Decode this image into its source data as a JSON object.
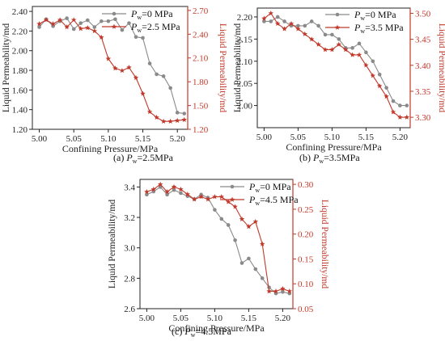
{
  "colors": {
    "gray_series": "#8a8a8a",
    "red_series": "#c0392b",
    "left_axis": "#222222",
    "right_axis": "#c0392b"
  },
  "chart_data": [
    {
      "type": "line",
      "caption": {
        "prefix": "(a) ",
        "var": "P",
        "sub": "w",
        "suffix": "=2.5MPa"
      },
      "xlabel": "Confining Pressure/MPa",
      "ylabel": "Liquid Permeability/md",
      "y2label": "Liquid Permeability/md",
      "xlim": [
        4.99,
        5.215
      ],
      "ylim": [
        1.2,
        2.45
      ],
      "y2lim": [
        1.2,
        2.75
      ],
      "x_ticks": [
        "5.00",
        "5.05",
        "5.10",
        "5.15",
        "5.20"
      ],
      "y_ticks": [
        "1.20",
        "1.40",
        "1.60",
        "1.80",
        "2.00",
        "2.20",
        "2.40"
      ],
      "y2_ticks": [
        "1.20",
        "1.50",
        "1.80",
        "2.10",
        "2.40",
        "2.70"
      ],
      "legend_position": "top-right",
      "series": [
        {
          "legend": {
            "var": "P",
            "sub": "w",
            "suffix": "=0 MPa"
          },
          "axis": "left",
          "marker": "circle",
          "x": [
            5.0,
            5.01,
            5.02,
            5.03,
            5.04,
            5.05,
            5.06,
            5.07,
            5.08,
            5.09,
            5.1,
            5.11,
            5.12,
            5.13,
            5.14,
            5.15,
            5.16,
            5.17,
            5.18,
            5.19,
            5.2,
            5.21
          ],
          "y": [
            2.24,
            2.32,
            2.25,
            2.3,
            2.33,
            2.22,
            2.28,
            2.31,
            2.24,
            2.3,
            2.3,
            2.32,
            2.21,
            2.28,
            2.14,
            2.13,
            1.87,
            1.76,
            1.74,
            1.62,
            1.37,
            1.36
          ]
        },
        {
          "legend": {
            "var": "P",
            "sub": "w",
            "suffix": "=2.5 MPa"
          },
          "axis": "right",
          "marker": "star",
          "x": [
            5.0,
            5.01,
            5.02,
            5.03,
            5.04,
            5.05,
            5.06,
            5.07,
            5.08,
            5.09,
            5.1,
            5.11,
            5.12,
            5.13,
            5.14,
            5.15,
            5.16,
            5.17,
            5.18,
            5.19,
            5.2,
            5.21
          ],
          "y": [
            2.53,
            2.58,
            2.53,
            2.58,
            2.49,
            2.58,
            2.47,
            2.48,
            2.44,
            2.36,
            2.09,
            1.97,
            1.94,
            1.98,
            1.85,
            1.65,
            1.42,
            1.35,
            1.3,
            1.3,
            1.31,
            1.32
          ]
        }
      ]
    },
    {
      "type": "line",
      "caption": {
        "prefix": "(b) ",
        "var": "P",
        "sub": "w",
        "suffix": "=3.5MPa"
      },
      "xlabel": "Confining Pressure/MPa",
      "ylabel": "Liquid Permeability/md",
      "y2label": "Liquid Permeability/md",
      "xlim": [
        4.99,
        5.215
      ],
      "ylim": [
        1.95,
        2.22
      ],
      "y2lim": [
        3.28,
        3.51
      ],
      "x_ticks": [
        "5.00",
        "5.05",
        "5.10",
        "5.15",
        "5.20"
      ],
      "y_ticks": [
        "2.00",
        "2.05",
        "2.10",
        "2.15",
        "2.20"
      ],
      "y2_ticks": [
        "3.30",
        "3.35",
        "3.40",
        "3.45",
        "3.50"
      ],
      "legend_position": "top-right",
      "series": [
        {
          "legend": {
            "var": "P",
            "sub": "w",
            "suffix": "=0 MPa"
          },
          "axis": "left",
          "marker": "circle",
          "x": [
            5.0,
            5.01,
            5.02,
            5.03,
            5.04,
            5.05,
            5.06,
            5.07,
            5.08,
            5.09,
            5.1,
            5.11,
            5.12,
            5.13,
            5.14,
            5.15,
            5.16,
            5.17,
            5.18,
            5.19,
            5.2,
            5.21
          ],
          "y": [
            2.19,
            2.19,
            2.2,
            2.19,
            2.18,
            2.18,
            2.18,
            2.19,
            2.18,
            2.16,
            2.16,
            2.15,
            2.13,
            2.13,
            2.14,
            2.12,
            2.1,
            2.07,
            2.04,
            2.01,
            2.0,
            2.0
          ]
        },
        {
          "legend": {
            "var": "P",
            "sub": "w",
            "suffix": "=3.5 MPa"
          },
          "axis": "right",
          "marker": "star",
          "x": [
            5.0,
            5.01,
            5.02,
            5.03,
            5.04,
            5.05,
            5.06,
            5.07,
            5.08,
            5.09,
            5.1,
            5.11,
            5.12,
            5.13,
            5.14,
            5.15,
            5.16,
            5.17,
            5.18,
            5.19,
            5.2,
            5.21
          ],
          "y": [
            3.49,
            3.5,
            3.48,
            3.47,
            3.48,
            3.47,
            3.46,
            3.45,
            3.44,
            3.43,
            3.43,
            3.44,
            3.43,
            3.42,
            3.42,
            3.4,
            3.38,
            3.36,
            3.34,
            3.31,
            3.3,
            3.3
          ]
        }
      ]
    },
    {
      "type": "line",
      "caption": {
        "prefix": "(c) ",
        "var": "P",
        "sub": "w",
        "suffix": "=4.5MPa"
      },
      "xlabel": "Confining Pressure/MPa",
      "ylabel": "Liquid Permeability/md",
      "y2label": "Liquid Permeability/md",
      "xlim": [
        4.99,
        5.215
      ],
      "ylim": [
        2.6,
        3.45
      ],
      "y2lim": [
        0.05,
        0.31
      ],
      "x_ticks": [
        "5.00",
        "5.05",
        "5.10",
        "5.15",
        "5.20"
      ],
      "y_ticks": [
        "2.6",
        "2.8",
        "3.0",
        "3.2",
        "3.4"
      ],
      "y2_ticks": [
        "0.05",
        "0.10",
        "0.15",
        "0.20",
        "0.25",
        "0.30"
      ],
      "legend_position": "top-right",
      "series": [
        {
          "legend": {
            "var": "P",
            "sub": "w",
            "suffix": "=0 MPa"
          },
          "axis": "left",
          "marker": "circle",
          "x": [
            5.0,
            5.01,
            5.02,
            5.03,
            5.04,
            5.05,
            5.06,
            5.07,
            5.08,
            5.09,
            5.1,
            5.11,
            5.12,
            5.13,
            5.14,
            5.15,
            5.16,
            5.17,
            5.18,
            5.19,
            5.2,
            5.21
          ],
          "y": [
            3.35,
            3.37,
            3.4,
            3.35,
            3.38,
            3.36,
            3.34,
            3.32,
            3.35,
            3.33,
            3.25,
            3.19,
            3.15,
            3.05,
            2.9,
            2.93,
            2.86,
            2.8,
            2.74,
            2.7,
            2.71,
            2.7
          ]
        },
        {
          "legend": {
            "var": "P",
            "sub": "w",
            "suffix": "=4.5 MPa"
          },
          "axis": "right",
          "marker": "star",
          "x": [
            5.0,
            5.01,
            5.02,
            5.03,
            5.04,
            5.05,
            5.06,
            5.07,
            5.08,
            5.09,
            5.1,
            5.11,
            5.12,
            5.13,
            5.14,
            5.15,
            5.16,
            5.17,
            5.18,
            5.19,
            5.2,
            5.21
          ],
          "y": [
            0.285,
            0.29,
            0.3,
            0.285,
            0.295,
            0.29,
            0.28,
            0.27,
            0.275,
            0.27,
            0.275,
            0.275,
            0.265,
            0.255,
            0.23,
            0.215,
            0.225,
            0.18,
            0.085,
            0.085,
            0.09,
            0.085
          ]
        }
      ]
    }
  ]
}
